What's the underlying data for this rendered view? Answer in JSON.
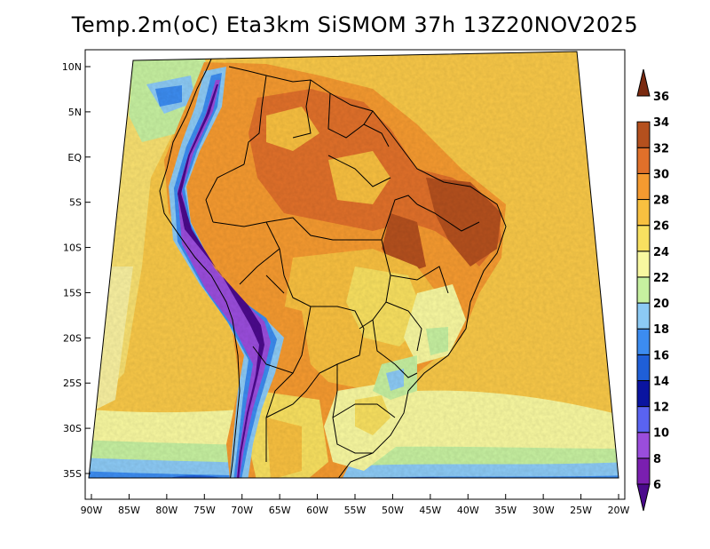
{
  "title": "Temp.2m(oC) Eta3km SiSMOM 37h 13Z20NOV2025",
  "map": {
    "lat_labels": [
      "10N",
      "5N",
      "EQ",
      "5S",
      "10S",
      "15S",
      "20S",
      "25S",
      "30S",
      "35S"
    ],
    "lat_values": [
      10,
      5,
      0,
      -5,
      -10,
      -15,
      -20,
      -25,
      -30,
      -35
    ],
    "lon_labels": [
      "90W",
      "85W",
      "80W",
      "75W",
      "70W",
      "65W",
      "60W",
      "55W",
      "50W",
      "45W",
      "40W",
      "35W",
      "30W",
      "25W",
      "20W"
    ],
    "lon_values": [
      -90,
      -85,
      -80,
      -75,
      -70,
      -65,
      -60,
      -55,
      -50,
      -45,
      -40,
      -35,
      -30,
      -25,
      -20
    ],
    "variable": "2m temperature",
    "units": "oC"
  },
  "colorbar": {
    "levels": [
      "6",
      "8",
      "10",
      "12",
      "14",
      "16",
      "18",
      "20",
      "22",
      "24",
      "26",
      "28",
      "30",
      "32",
      "34",
      "36"
    ],
    "colors": [
      "#4b0a8c",
      "#7a1fb0",
      "#9a4ddc",
      "#5a63f0",
      "#0a14a0",
      "#1f5fd8",
      "#3c8cf0",
      "#8ccaf5",
      "#c6f0a0",
      "#f8f8a0",
      "#f8e060",
      "#f8c040",
      "#f59a30",
      "#e0702a",
      "#b4501e",
      "#7a2a10"
    ]
  }
}
